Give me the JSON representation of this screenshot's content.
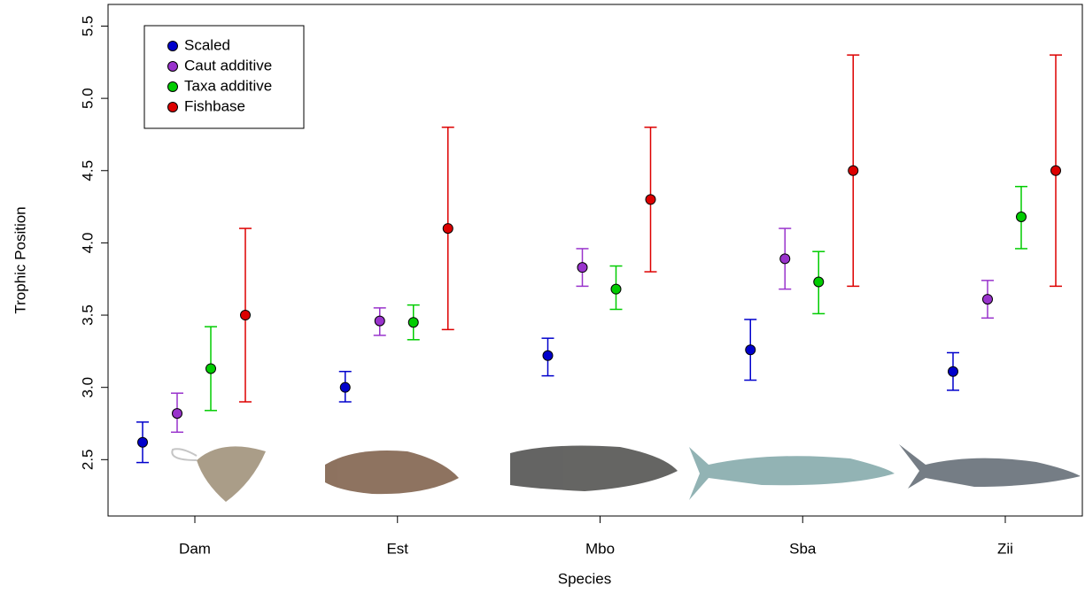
{
  "chart_data": {
    "type": "errorbar",
    "x_label": "Species",
    "y_label": "Trophic Position",
    "categories": [
      "Dam",
      "Est",
      "Mbo",
      "Sba",
      "Zii"
    ],
    "ylim": [
      2.11,
      5.65
    ],
    "yticks": [
      2.5,
      {
        "value": 3,
        "label": "3.0"
      },
      3.5,
      {
        "value": 4,
        "label": "4.0"
      },
      4.5,
      {
        "value": 5,
        "label": "5.0"
      },
      5.5
    ],
    "legend": "top-left",
    "series": [
      {
        "name": "Scaled",
        "color": "#0000cc",
        "values": [
          2.62,
          3.0,
          3.22,
          3.26,
          3.11
        ],
        "lower": [
          2.48,
          2.9,
          3.08,
          3.05,
          2.98
        ],
        "upper": [
          2.76,
          3.11,
          3.34,
          3.47,
          3.24
        ]
      },
      {
        "name": "Caut additive",
        "color": "#9933cc",
        "values": [
          2.82,
          3.46,
          3.83,
          3.89,
          3.61
        ],
        "lower": [
          2.69,
          3.36,
          3.7,
          3.68,
          3.48
        ],
        "upper": [
          2.96,
          3.55,
          3.96,
          4.1,
          3.74
        ]
      },
      {
        "name": "Taxa additive",
        "color": "#00cc00",
        "values": [
          3.13,
          3.45,
          3.68,
          3.73,
          4.18
        ],
        "lower": [
          2.84,
          3.33,
          3.54,
          3.51,
          3.96
        ],
        "upper": [
          3.42,
          3.57,
          3.84,
          3.94,
          4.39
        ]
      },
      {
        "name": "Fishbase",
        "color": "#dd0000",
        "values": [
          3.5,
          4.1,
          4.3,
          4.5,
          4.5
        ],
        "lower": [
          2.9,
          3.4,
          3.8,
          3.7,
          3.7
        ],
        "upper": [
          4.1,
          4.8,
          4.8,
          5.3,
          5.3
        ]
      }
    ]
  }
}
